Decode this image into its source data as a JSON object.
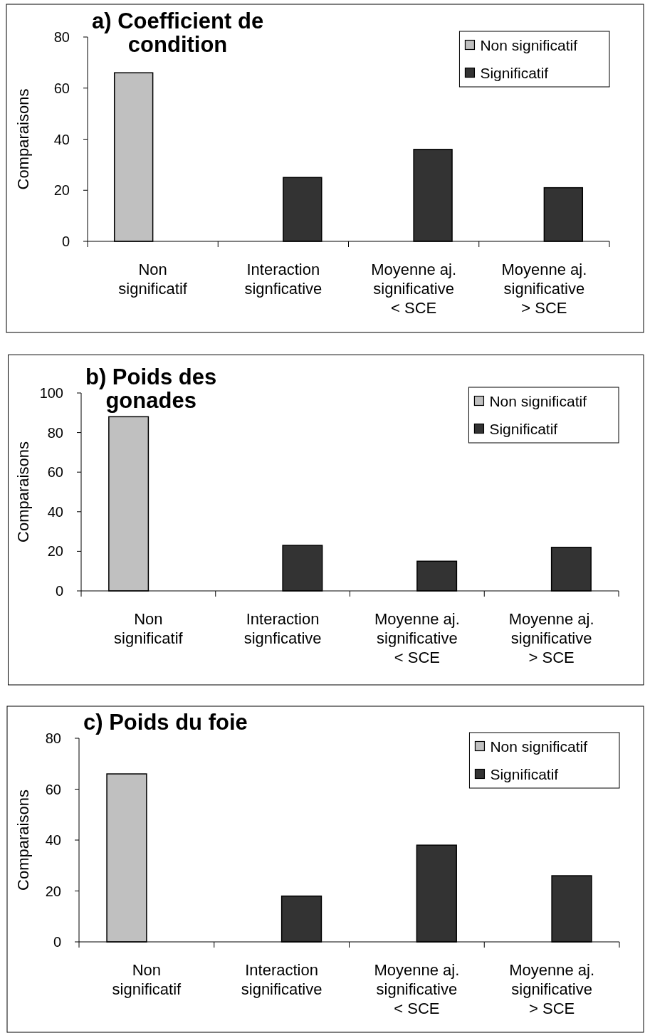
{
  "chart_data": [
    {
      "type": "bar",
      "title": "a) Coefficient de condition",
      "ylabel": "Comparaisons",
      "categories": [
        "Non significatif",
        "Interaction signficative",
        "Moyenne aj. significative < SCE",
        "Moyenne aj. significative > SCE"
      ],
      "series": [
        {
          "name": "Non significatif",
          "color": "#c0c0c0",
          "values": [
            66,
            null,
            null,
            null
          ]
        },
        {
          "name": "Significatif",
          "color": "#333333",
          "values": [
            null,
            25,
            36,
            21
          ]
        }
      ],
      "ylim": [
        0,
        80
      ],
      "yticks": [
        0,
        20,
        40,
        60,
        80
      ],
      "legend": "top right"
    },
    {
      "type": "bar",
      "title": "b) Poids des gonades",
      "ylabel": "Comparaisons",
      "categories": [
        "Non significatif",
        "Interaction signficative",
        "Moyenne aj. significative < SCE",
        "Moyenne aj. significative > SCE"
      ],
      "series": [
        {
          "name": "Non significatif",
          "color": "#c0c0c0",
          "values": [
            88,
            null,
            null,
            null
          ]
        },
        {
          "name": "Significatif",
          "color": "#333333",
          "values": [
            null,
            23,
            15,
            22
          ]
        }
      ],
      "ylim": [
        0,
        100
      ],
      "yticks": [
        0,
        20,
        40,
        60,
        80,
        100
      ],
      "legend": "top right"
    },
    {
      "type": "bar",
      "title": "c) Poids du foie",
      "ylabel": "Comparaisons",
      "categories": [
        "Non significatif",
        "Interaction significative",
        "Moyenne aj. significative < SCE",
        "Moyenne aj. significative > SCE"
      ],
      "series": [
        {
          "name": "Non significatif",
          "color": "#c0c0c0",
          "values": [
            66,
            null,
            null,
            null
          ]
        },
        {
          "name": "Significatif",
          "color": "#333333",
          "values": [
            null,
            18,
            38,
            26
          ]
        }
      ],
      "ylim": [
        0,
        80
      ],
      "yticks": [
        0,
        20,
        40,
        60,
        80
      ],
      "legend": "top right"
    }
  ]
}
